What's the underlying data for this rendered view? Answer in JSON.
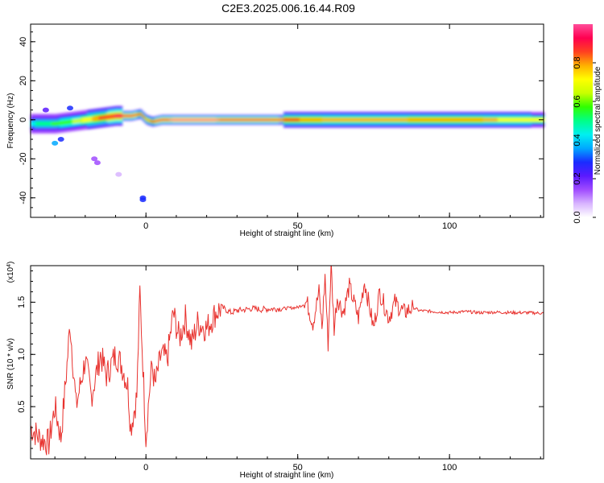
{
  "title": "C2E3.2025.006.16.44.R09",
  "colors": {
    "snr_line": "#e8322e",
    "axis": "#000000",
    "colormap": [
      "#ffffff",
      "#d8b4ff",
      "#a04cff",
      "#5a1aff",
      "#1a2cff",
      "#00a8ff",
      "#00f0f0",
      "#00ff88",
      "#30ff00",
      "#c8ff00",
      "#ffff00",
      "#ffb000",
      "#ff4020",
      "#ff0050",
      "#ff4e9a"
    ]
  },
  "chart_data": [
    {
      "type": "heatmap",
      "xlabel": "Height of straight line (km)",
      "ylabel": "Frequency (Hz)",
      "xlim": [
        -38,
        131
      ],
      "ylim": [
        -50,
        49
      ],
      "xticks": [
        0,
        50,
        100
      ],
      "yticks": [
        -40,
        -20,
        0,
        20,
        40
      ],
      "colorbar": {
        "label": "Normalized spectral amplitude",
        "range": [
          0,
          1
        ],
        "ticks": [
          "0.0",
          "0.2",
          "0.4",
          "0.6",
          "0.8"
        ]
      },
      "ridge": {
        "description_points_x": [
          -38,
          -30,
          -25,
          -20,
          -15,
          -10,
          -5,
          -2,
          0,
          2,
          5,
          10,
          20,
          40,
          60,
          80,
          100,
          131
        ],
        "center_freq": [
          -2,
          -2,
          -1,
          0,
          1,
          2,
          2,
          3,
          0,
          -1,
          0,
          0,
          0,
          0,
          0,
          0,
          0,
          0
        ],
        "peak_amplitude": [
          0.45,
          0.55,
          0.6,
          0.7,
          0.85,
          0.9,
          0.9,
          0.85,
          0.8,
          0.85,
          0.95,
          0.98,
          0.98,
          0.9,
          0.75,
          0.75,
          0.8,
          0.7
        ]
      },
      "scatter_blobs": [
        {
          "x": -30,
          "y": -12,
          "amp": 0.35
        },
        {
          "x": -28,
          "y": -10,
          "amp": 0.3
        },
        {
          "x": -33,
          "y": 5,
          "amp": 0.2
        },
        {
          "x": -25,
          "y": 6,
          "amp": 0.25
        },
        {
          "x": -17,
          "y": -20,
          "amp": 0.15
        },
        {
          "x": -16,
          "y": -22,
          "amp": 0.12
        },
        {
          "x": -9,
          "y": -28,
          "amp": 0.08
        },
        {
          "x": -1,
          "y": -40,
          "amp": 0.3
        },
        {
          "x": -1,
          "y": -41,
          "amp": 0.25
        }
      ]
    },
    {
      "type": "line",
      "xlabel": "Height of straight line (km)",
      "ylabel": "SNR (10 * v/v)",
      "scale_note": "(x10",
      "scale_exp": "4",
      "scale_close": ")",
      "xlim": [
        -38,
        131
      ],
      "ylim": [
        0,
        18500
      ],
      "xticks": [
        0,
        50,
        100
      ],
      "yticks": [
        5000,
        10000,
        15000
      ],
      "ytick_labels": [
        "0.5",
        "1.0",
        "1.5"
      ],
      "series": [
        {
          "x": [
            -38,
            -35,
            -32,
            -30,
            -28,
            -26,
            -25,
            -23,
            -20,
            -18,
            -15,
            -13,
            -10,
            -8,
            -6,
            -5,
            -3,
            -2,
            -1,
            0,
            1,
            2,
            3,
            5,
            7,
            9,
            11,
            13,
            15,
            17,
            20,
            23,
            25,
            28,
            30,
            33,
            35,
            38,
            40,
            45,
            50,
            53,
            55,
            57,
            58,
            59,
            60,
            61,
            62,
            63,
            65,
            67,
            70,
            72,
            75,
            77,
            80,
            82,
            85,
            88,
            90,
            95,
            100,
            105,
            110,
            115,
            120,
            125,
            131
          ],
          "y": [
            3000,
            2000,
            1500,
            5000,
            2000,
            9000,
            13000,
            5000,
            9500,
            6000,
            10000,
            8000,
            10000,
            9000,
            7000,
            3000,
            6000,
            16000,
            9000,
            2000,
            6000,
            9000,
            7000,
            10000,
            9500,
            14000,
            11500,
            13500,
            11000,
            13000,
            12500,
            14000,
            14500,
            14000,
            14200,
            14300,
            14400,
            14300,
            14350,
            14400,
            14500,
            15000,
            13000,
            16000,
            12500,
            17500,
            11000,
            18500,
            12500,
            15500,
            14000,
            16500,
            13500,
            17000,
            12500,
            16000,
            13500,
            15000,
            14000,
            14500,
            14200,
            14100,
            14000,
            14100,
            14000,
            14050,
            14000,
            14000,
            13950
          ]
        }
      ]
    }
  ]
}
